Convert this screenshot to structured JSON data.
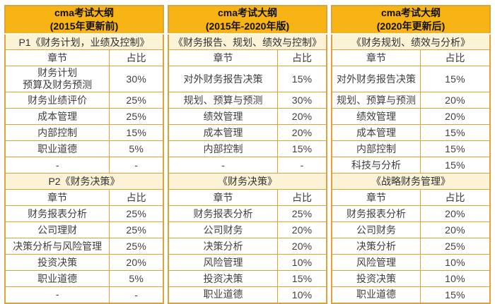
{
  "colors": {
    "gold": "#f8b414",
    "cream": "#fcf3d7",
    "border": "#d9a43c",
    "header_text": "#111111",
    "body_text": "#3f3f3f"
  },
  "chart_data": [
    {
      "type": "table",
      "title_line1": "cma考试大纲",
      "title_line2": "(2015年更新前)",
      "sections": [
        {
          "title": "P1《财务计划，业绩及控制》",
          "col_headers": [
            "章节",
            "占比"
          ],
          "rows": [
            {
              "chapter": "财务计划\n预算及财务预测",
              "share": "30%",
              "tall": true
            },
            {
              "chapter": "财务业绩评价",
              "share": "25%"
            },
            {
              "chapter": "成本管理",
              "share": "25%"
            },
            {
              "chapter": "内部控制",
              "share": "15%"
            },
            {
              "chapter": "职业道德",
              "share": "5%"
            },
            {
              "chapter": "-",
              "share": "-"
            }
          ]
        },
        {
          "title": "P2《财务决策》",
          "col_headers": [
            "章节",
            "占比"
          ],
          "rows": [
            {
              "chapter": "财务报表分析",
              "share": "25%"
            },
            {
              "chapter": "公司理财",
              "share": "25%"
            },
            {
              "chapter": "决策分析与风险管理",
              "share": "25%"
            },
            {
              "chapter": "投资决策",
              "share": "20%"
            },
            {
              "chapter": "职业道德",
              "share": "5%"
            },
            {
              "chapter": "-",
              "share": "-"
            }
          ]
        }
      ]
    },
    {
      "type": "table",
      "title_line1": "cma考试大纲",
      "title_line2": "(2015年-2020年版)",
      "sections": [
        {
          "title": "《财务报告、规划、绩效与控制》",
          "col_headers": [
            "章节",
            "占比"
          ],
          "rows": [
            {
              "chapter": "对外财务报告决策",
              "share": "15%",
              "tall": true
            },
            {
              "chapter": "规划、预算与预测",
              "share": "30%"
            },
            {
              "chapter": "绩效管理",
              "share": "20%"
            },
            {
              "chapter": "成本管理",
              "share": "20%"
            },
            {
              "chapter": "内部控制",
              "share": "15%"
            },
            {
              "chapter": "-",
              "share": "-"
            }
          ]
        },
        {
          "title": "《财务决策》",
          "col_headers": [
            "章节",
            "占比"
          ],
          "rows": [
            {
              "chapter": "财务报表分析",
              "share": "25%"
            },
            {
              "chapter": "公司财务",
              "share": "20%"
            },
            {
              "chapter": "决策分析",
              "share": "20%"
            },
            {
              "chapter": "风险管理",
              "share": "10%"
            },
            {
              "chapter": "投资决策",
              "share": "15%"
            },
            {
              "chapter": "职业道德",
              "share": "10%"
            }
          ]
        }
      ]
    },
    {
      "type": "table",
      "title_line1": "cma考试大纲",
      "title_line2": "(2020年更新后)",
      "sections": [
        {
          "title": "《财务规划、绩效与分析》",
          "col_headers": [
            "章节",
            "占比"
          ],
          "rows": [
            {
              "chapter": "对外财务报告决策",
              "share": "15%",
              "tall": true
            },
            {
              "chapter": "规划、预算与预测",
              "share": "20%"
            },
            {
              "chapter": "绩效管理",
              "share": "20%"
            },
            {
              "chapter": "成本管理",
              "share": "15%"
            },
            {
              "chapter": "内部控制",
              "share": "15%"
            },
            {
              "chapter": "科技与分析",
              "share": "15%"
            }
          ]
        },
        {
          "title": "《战略财务管理》",
          "col_headers": [
            "章节",
            "占比"
          ],
          "rows": [
            {
              "chapter": "财务报表分析",
              "share": "20%"
            },
            {
              "chapter": "公司财务",
              "share": "20%"
            },
            {
              "chapter": "决策分析",
              "share": "25%"
            },
            {
              "chapter": "风险管理",
              "share": "10%"
            },
            {
              "chapter": "投资决策",
              "share": "10%"
            },
            {
              "chapter": "职业道德",
              "share": "15%"
            }
          ]
        }
      ]
    }
  ]
}
